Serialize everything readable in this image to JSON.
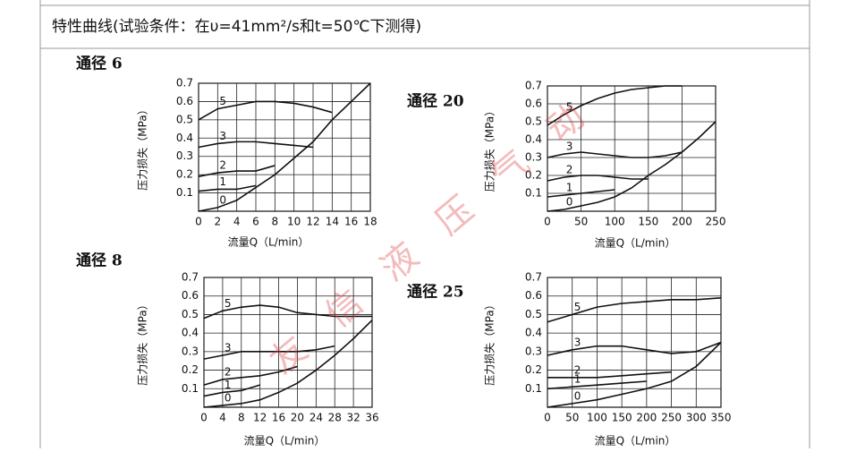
{
  "header": {
    "title": "特性曲线(试验条件：在υ=41mm²/s和t=50℃下测得)"
  },
  "watermark": "友 信 液 压 气 动",
  "chart_data": [
    {
      "type": "line",
      "title": "通径 6",
      "xlabel": "流量Q（L/min）",
      "ylabel": "压力损失（MPa）",
      "grid": true,
      "x": [
        0,
        2,
        4,
        6,
        8,
        10,
        12,
        14,
        16,
        18
      ],
      "xlim": [
        0,
        18
      ],
      "xticks": [
        0,
        2,
        4,
        6,
        8,
        10,
        12,
        14,
        16,
        18
      ],
      "ylim": [
        0,
        0.7
      ],
      "yticks": [
        0.1,
        0.2,
        0.3,
        0.4,
        0.5,
        0.6,
        0.7
      ],
      "series": [
        {
          "name": "0",
          "color": "#111111",
          "values": [
            0,
            0.02,
            0.06,
            0.13,
            0.2,
            0.29,
            0.38,
            0.5,
            0.6,
            0.7
          ]
        },
        {
          "name": "1",
          "color": "#111111",
          "values": [
            0.11,
            0.12,
            0.12,
            0.14,
            null,
            null,
            null,
            null,
            null,
            null
          ]
        },
        {
          "name": "2",
          "color": "#111111",
          "values": [
            0.19,
            0.21,
            0.22,
            0.22,
            0.25,
            null,
            null,
            null,
            null,
            null
          ]
        },
        {
          "name": "3",
          "color": "#111111",
          "values": [
            0.35,
            0.37,
            0.38,
            0.38,
            0.37,
            0.36,
            0.35,
            null,
            null,
            null
          ]
        },
        {
          "name": "5",
          "color": "#111111",
          "values": [
            0.5,
            0.56,
            0.58,
            0.6,
            0.6,
            0.59,
            0.57,
            0.54,
            null,
            null
          ]
        }
      ]
    },
    {
      "type": "line",
      "title": "通径 20",
      "xlabel": "流量Q（L/min）",
      "ylabel": "压力损失（MPa）",
      "grid": true,
      "x": [
        0,
        25,
        50,
        75,
        100,
        125,
        150,
        175,
        200,
        225,
        250
      ],
      "xlim": [
        0,
        250
      ],
      "xticks": [
        0,
        50,
        100,
        150,
        200,
        250
      ],
      "ylim": [
        0,
        0.7
      ],
      "yticks": [
        0.1,
        0.2,
        0.3,
        0.4,
        0.5,
        0.6,
        0.7
      ],
      "series": [
        {
          "name": "0",
          "color": "#111111",
          "values": [
            0,
            0.01,
            0.03,
            0.05,
            0.08,
            0.13,
            0.2,
            0.26,
            0.33,
            0.41,
            0.5
          ]
        },
        {
          "name": "1",
          "color": "#111111",
          "values": [
            0.08,
            0.09,
            0.1,
            0.11,
            0.12,
            null,
            null,
            null,
            null,
            null,
            null
          ]
        },
        {
          "name": "2",
          "color": "#111111",
          "values": [
            0.17,
            0.19,
            0.2,
            0.2,
            0.19,
            0.18,
            0.18,
            null,
            null,
            null,
            null
          ]
        },
        {
          "name": "3",
          "color": "#111111",
          "values": [
            0.3,
            0.32,
            0.33,
            0.32,
            0.31,
            0.3,
            0.3,
            0.31,
            0.33,
            null,
            null
          ]
        },
        {
          "name": "5",
          "color": "#111111",
          "values": [
            0.48,
            0.54,
            0.59,
            0.63,
            0.66,
            0.68,
            0.69,
            0.7,
            0.7,
            null,
            null
          ]
        }
      ]
    },
    {
      "type": "line",
      "title": "通径 8",
      "xlabel": "流量Q（L/min）",
      "ylabel": "压力损失（MPa）",
      "grid": true,
      "x": [
        0,
        4,
        8,
        12,
        16,
        20,
        24,
        28,
        32,
        36
      ],
      "xlim": [
        0,
        36
      ],
      "xticks": [
        0,
        4,
        8,
        12,
        16,
        20,
        24,
        28,
        32,
        36
      ],
      "ylim": [
        0,
        0.7
      ],
      "yticks": [
        0.1,
        0.2,
        0.3,
        0.4,
        0.5,
        0.6,
        0.7
      ],
      "series": [
        {
          "name": "0",
          "color": "#111111",
          "values": [
            0,
            0.01,
            0.02,
            0.04,
            0.08,
            0.13,
            0.2,
            0.28,
            0.37,
            0.47
          ]
        },
        {
          "name": "1",
          "color": "#111111",
          "values": [
            0.06,
            0.08,
            0.09,
            0.12,
            null,
            null,
            null,
            null,
            null,
            null
          ]
        },
        {
          "name": "2",
          "color": "#111111",
          "values": [
            0.12,
            0.15,
            0.16,
            0.17,
            0.19,
            0.22,
            null,
            null,
            null,
            null
          ]
        },
        {
          "name": "3",
          "color": "#111111",
          "values": [
            0.26,
            0.28,
            0.3,
            0.3,
            0.3,
            0.3,
            0.31,
            0.33,
            null,
            null
          ]
        },
        {
          "name": "5",
          "color": "#111111",
          "values": [
            0.48,
            0.52,
            0.54,
            0.55,
            0.54,
            0.51,
            0.5,
            0.49,
            0.49,
            0.49
          ]
        }
      ]
    },
    {
      "type": "line",
      "title": "通径 25",
      "xlabel": "流量Q（L/min）",
      "ylabel": "压力损失（MPa）",
      "grid": true,
      "x": [
        0,
        50,
        100,
        150,
        200,
        250,
        300,
        350
      ],
      "xlim": [
        0,
        350
      ],
      "xticks": [
        0,
        50,
        100,
        150,
        200,
        250,
        300,
        350
      ],
      "ylim": [
        0,
        0.7
      ],
      "yticks": [
        0.1,
        0.2,
        0.3,
        0.4,
        0.5,
        0.6,
        0.7
      ],
      "series": [
        {
          "name": "0",
          "color": "#111111",
          "values": [
            0,
            0.02,
            0.04,
            0.07,
            0.1,
            0.14,
            0.22,
            0.35
          ]
        },
        {
          "name": "1",
          "color": "#111111",
          "values": [
            0.1,
            0.11,
            0.12,
            0.13,
            0.14,
            null,
            null,
            null
          ]
        },
        {
          "name": "2",
          "color": "#111111",
          "values": [
            0.16,
            0.16,
            0.16,
            0.17,
            0.18,
            0.19,
            null,
            null
          ]
        },
        {
          "name": "3",
          "color": "#111111",
          "values": [
            0.28,
            0.31,
            0.33,
            0.33,
            0.31,
            0.29,
            0.3,
            0.35
          ]
        },
        {
          "name": "5",
          "color": "#111111",
          "values": [
            0.46,
            0.5,
            0.54,
            0.56,
            0.57,
            0.58,
            0.58,
            0.59
          ]
        }
      ]
    }
  ]
}
